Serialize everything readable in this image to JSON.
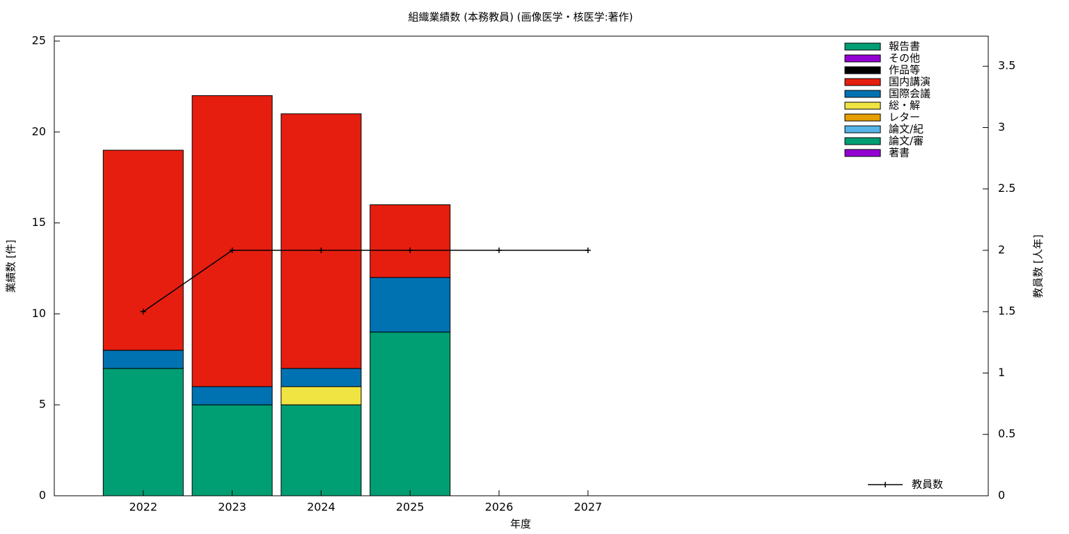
{
  "chart_data": {
    "type": "bar",
    "stacked": true,
    "title": "組織業績数 (本務教員) (画像医学・核医学:著作)",
    "xlabel": "年度",
    "ylabel": "業績数 [件]",
    "y2label": "教員数 [人年]",
    "x": [
      2022,
      2023,
      2024,
      2025,
      2026,
      2027
    ],
    "xlim": [
      2021,
      2031.5
    ],
    "xticks": [
      2022,
      2023,
      2024,
      2025,
      2026,
      2027
    ],
    "ylim": [
      0,
      25.27
    ],
    "yticks": [
      0,
      5,
      10,
      15,
      20,
      25
    ],
    "y2lim": [
      0,
      3.745
    ],
    "y2ticks": [
      0,
      0.5,
      1,
      1.5,
      2,
      2.5,
      3,
      3.5
    ],
    "series": [
      {
        "name": "著書",
        "color": "#9400d3",
        "values": [
          0,
          0,
          0,
          0,
          0,
          0
        ]
      },
      {
        "name": "論文/審",
        "color": "#009e73",
        "values": [
          7,
          5,
          5,
          9,
          0,
          0
        ]
      },
      {
        "name": "論文/紀",
        "color": "#56b4e9",
        "values": [
          0,
          0,
          0,
          0,
          0,
          0
        ]
      },
      {
        "name": "レター",
        "color": "#e69f00",
        "values": [
          0,
          0,
          0,
          0,
          0,
          0
        ]
      },
      {
        "name": "総・解",
        "color": "#f0e442",
        "values": [
          0,
          0,
          1,
          0,
          0,
          0
        ]
      },
      {
        "name": "国際会議",
        "color": "#0072b2",
        "values": [
          1,
          1,
          1,
          3,
          0,
          0
        ]
      },
      {
        "name": "国内講演",
        "color": "#e51e10",
        "values": [
          11,
          16,
          14,
          4,
          0,
          0
        ]
      },
      {
        "name": "作品等",
        "color": "#000000",
        "values": [
          0,
          0,
          0,
          0,
          0,
          0
        ]
      },
      {
        "name": "その他",
        "color": "#9400d3",
        "values": [
          0,
          0,
          0,
          0,
          0,
          0
        ]
      },
      {
        "name": "報告書",
        "color": "#009e73",
        "values": [
          0,
          0,
          0,
          0,
          0,
          0
        ]
      },
      {
        "name": "教員数",
        "type": "line",
        "axis": "y2",
        "color": "#000000",
        "values": [
          1.5,
          2,
          2,
          2,
          2,
          2
        ]
      }
    ]
  }
}
